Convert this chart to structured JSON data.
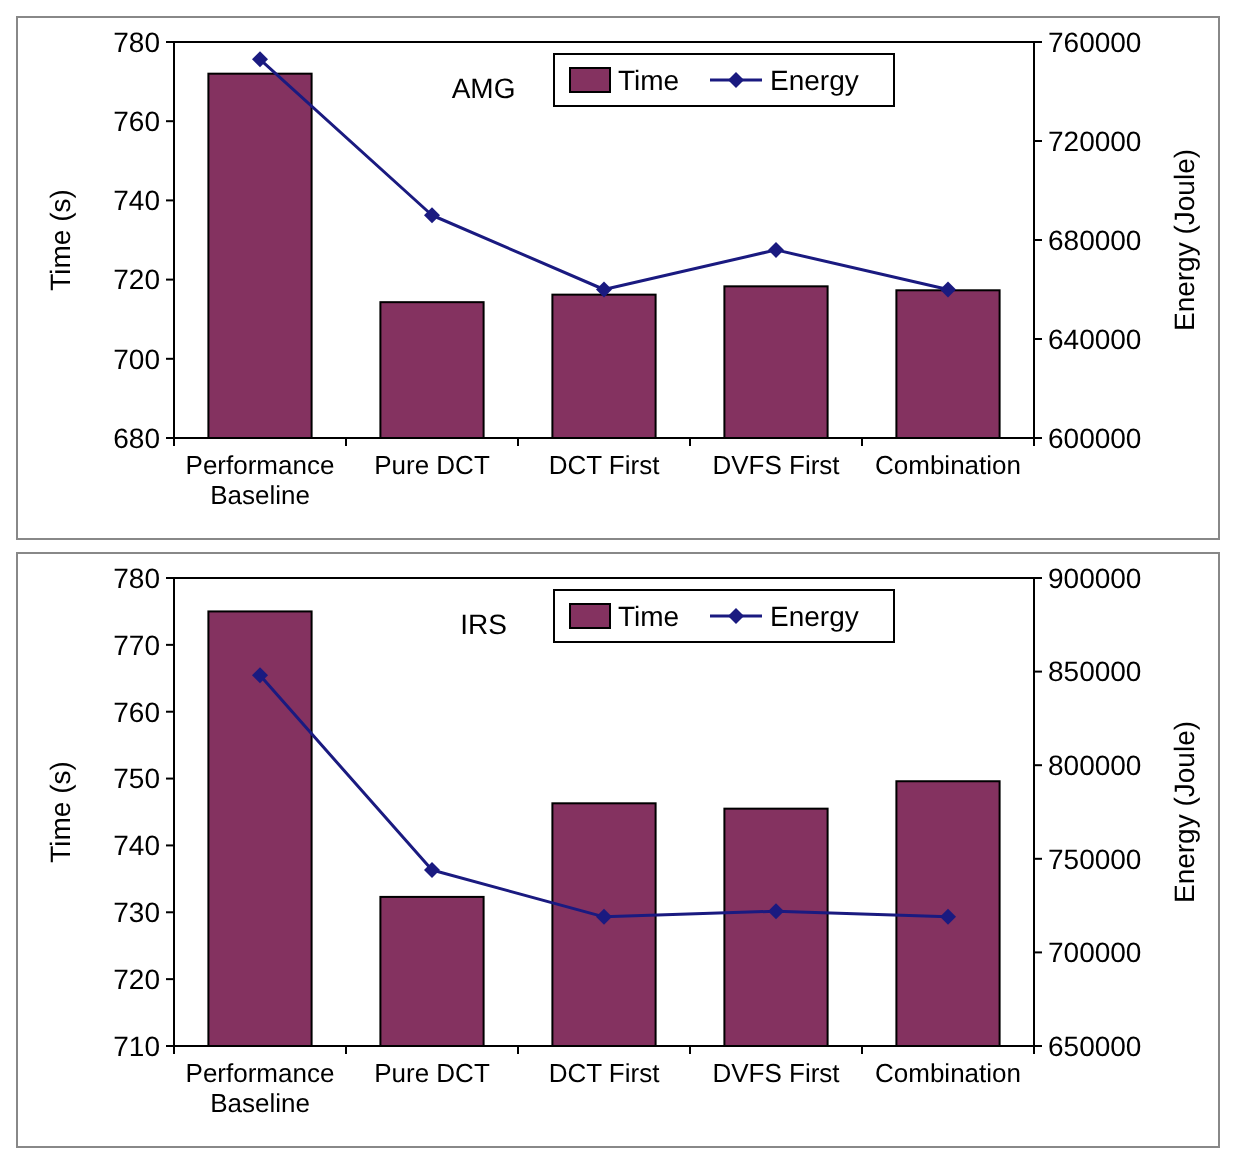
{
  "chart_data": [
    {
      "type": "bar",
      "title": "AMG",
      "categories": [
        "Performance Baseline",
        "Pure DCT",
        "DCT First",
        "DVFS First",
        "Combination"
      ],
      "ylabel": "Time (s)",
      "y2label": "Energy (Joule)",
      "ylim": [
        680,
        780
      ],
      "yticks": [
        680,
        700,
        720,
        740,
        760,
        780
      ],
      "y2lim": [
        600000,
        760000
      ],
      "y2ticks": [
        600000,
        640000,
        680000,
        720000,
        760000
      ],
      "legend": "top right",
      "grid": false,
      "series": [
        {
          "name": "Time",
          "color": "#843260",
          "values": [
            772,
            714.3,
            716.2,
            718.3,
            717.3
          ]
        },
        {
          "name": "Energy",
          "type": "line",
          "axis": "y2",
          "color": "#1a1a80",
          "marker": "diamond",
          "values": [
            753000,
            690000,
            660000,
            676000,
            660000
          ]
        }
      ]
    },
    {
      "type": "bar",
      "title": "IRS",
      "categories": [
        "Performance Baseline",
        "Pure DCT",
        "DCT First",
        "DVFS First",
        "Combination"
      ],
      "ylabel": "Time (s)",
      "y2label": "Energy (Joule)",
      "ylim": [
        710,
        780
      ],
      "yticks": [
        710,
        720,
        730,
        740,
        750,
        760,
        770,
        780
      ],
      "y2lim": [
        650000,
        900000
      ],
      "y2ticks": [
        650000,
        700000,
        750000,
        800000,
        850000,
        900000
      ],
      "legend": "top right",
      "grid": false,
      "series": [
        {
          "name": "Time",
          "color": "#843260",
          "values": [
            775,
            732.3,
            746.3,
            745.5,
            749.6
          ]
        },
        {
          "name": "Energy",
          "type": "line",
          "axis": "y2",
          "color": "#1a1a80",
          "marker": "diamond",
          "values": [
            848000,
            744000,
            719000,
            722000,
            719000
          ]
        }
      ]
    }
  ]
}
